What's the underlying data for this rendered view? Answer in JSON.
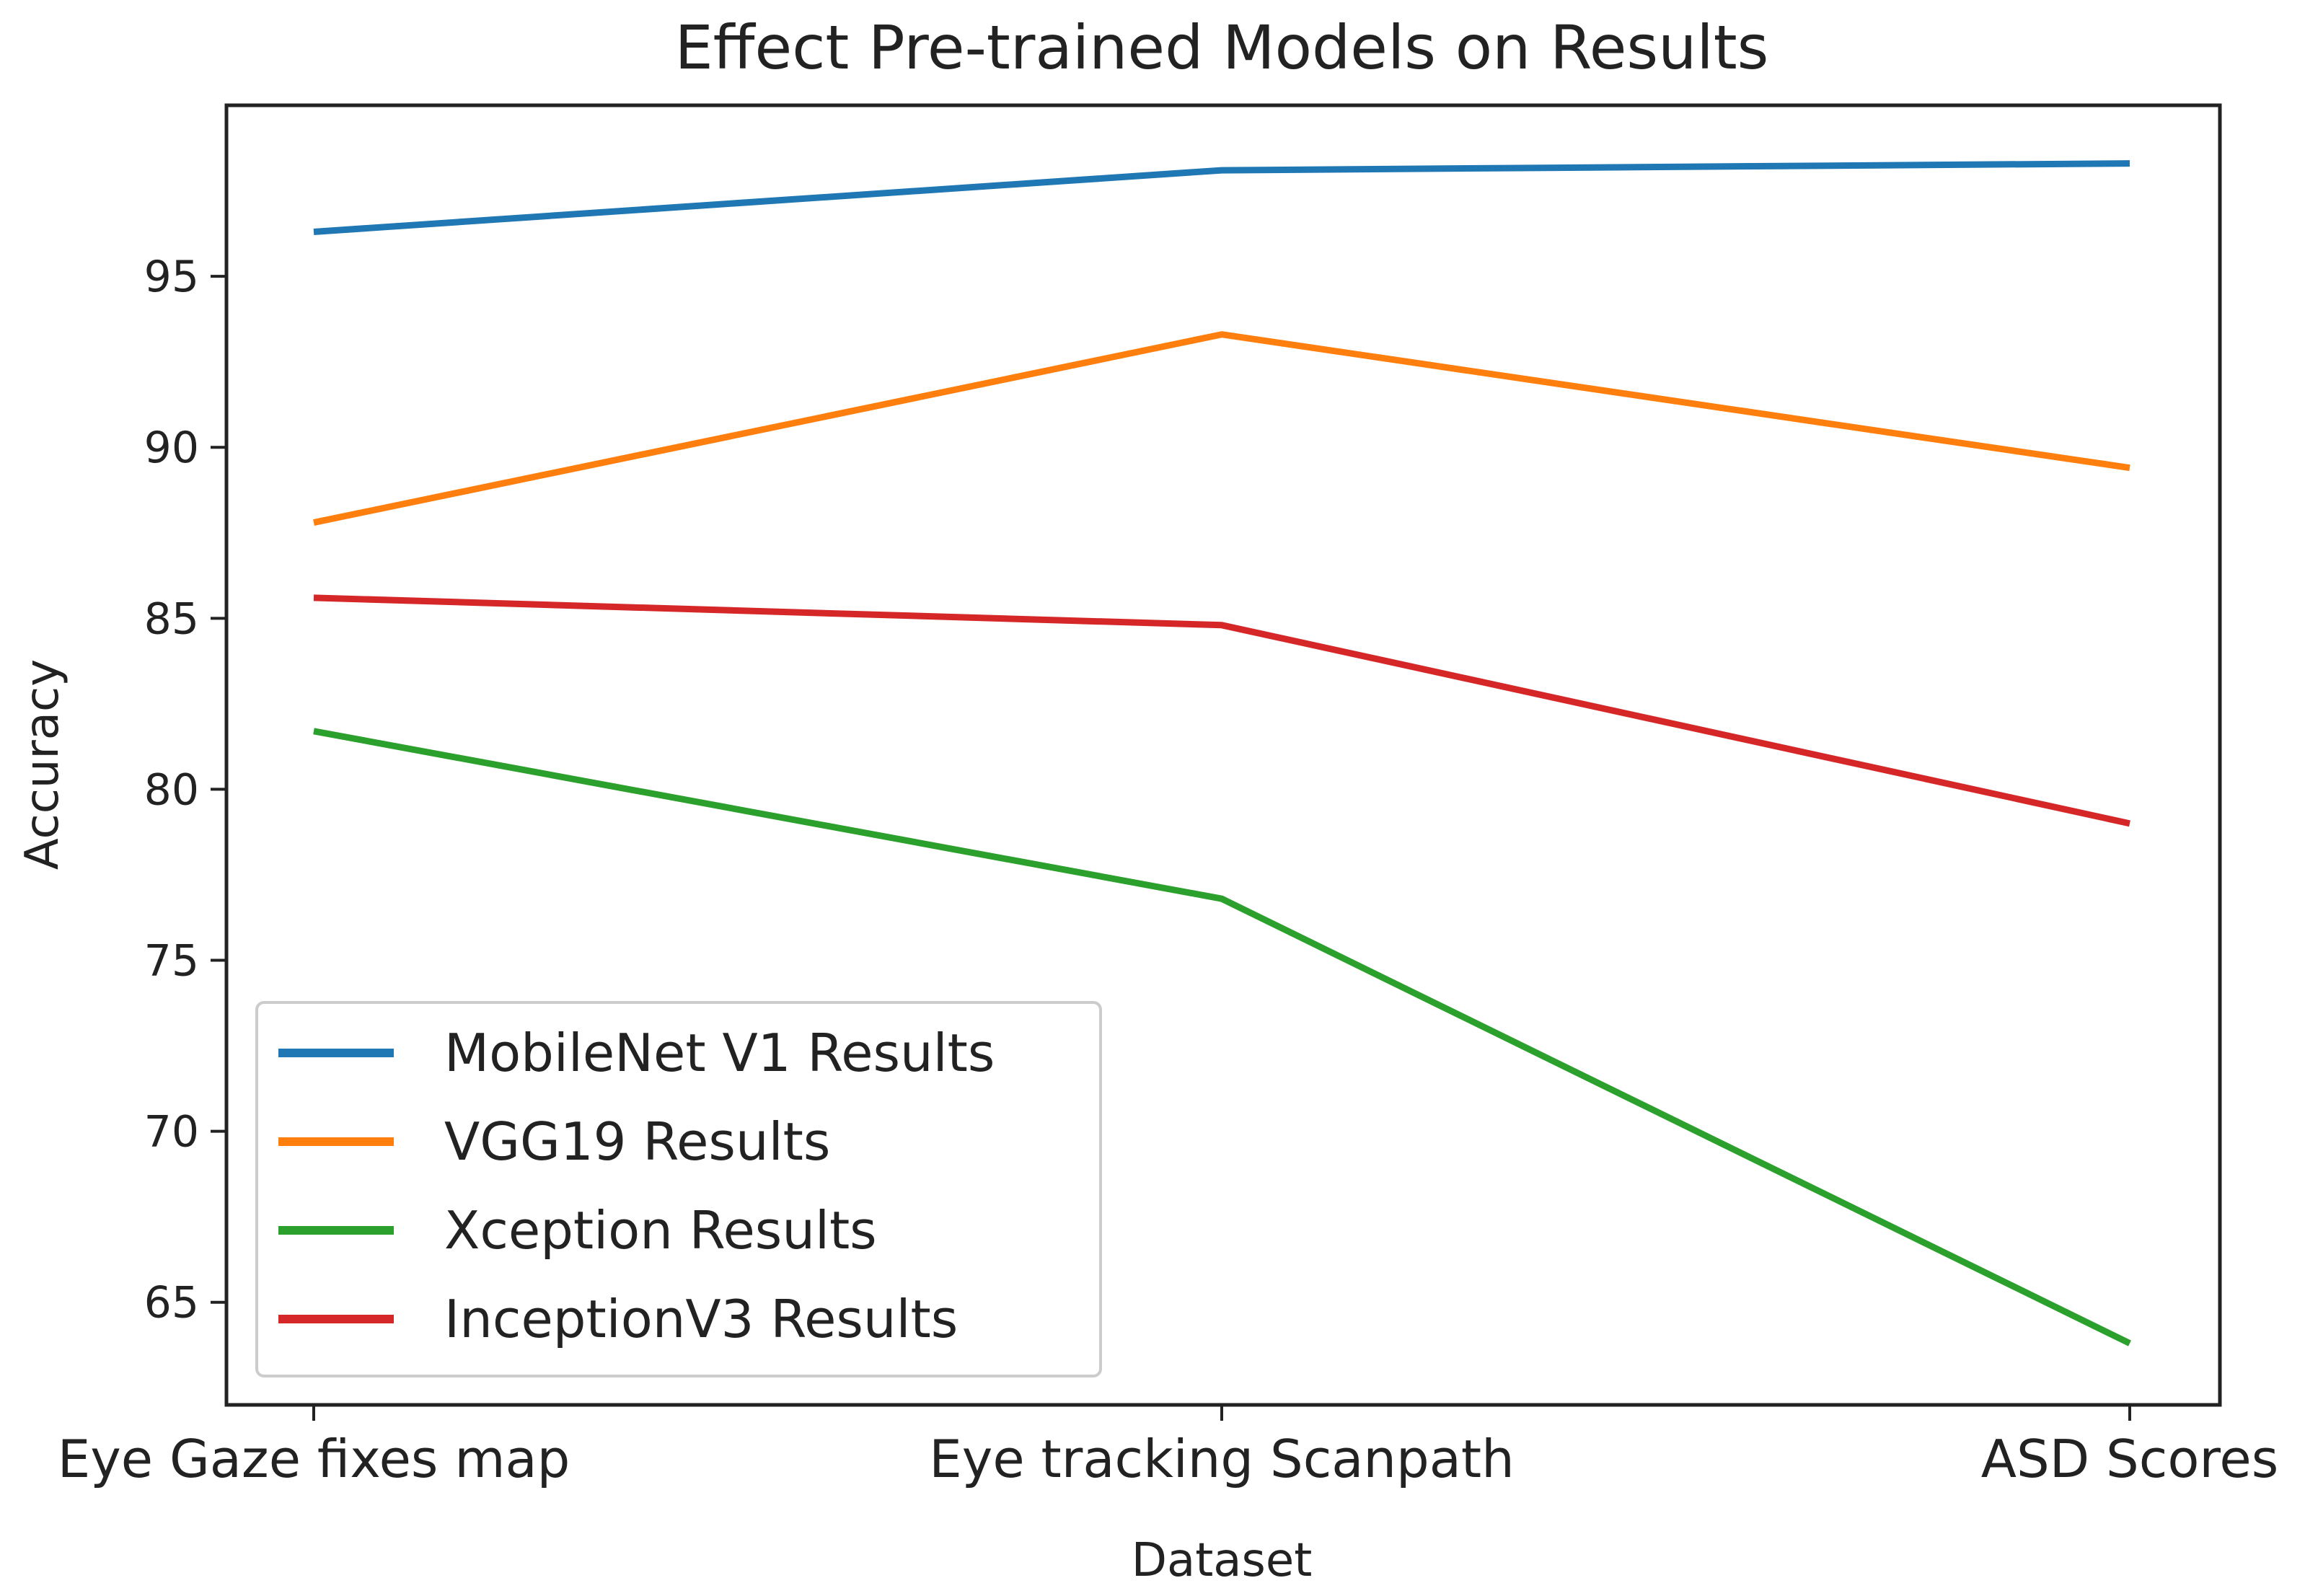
{
  "chart_data": {
    "type": "line",
    "title": "Effect Pre-trained Models on Results",
    "xlabel": "Dataset",
    "ylabel": "Accuracy",
    "categories": [
      "Eye Gaze fixes map",
      "Eye tracking Scanpath",
      "ASD Scores"
    ],
    "yticks": [
      65,
      70,
      75,
      80,
      85,
      90,
      95
    ],
    "ylim": [
      62.0,
      100.0
    ],
    "grid": false,
    "legend_position": "lower-left",
    "series": [
      {
        "name": "MobileNet V1 Results",
        "color": "#1f77b4",
        "values": [
          96.3,
          98.1,
          98.3
        ]
      },
      {
        "name": "VGG19 Results",
        "color": "#ff7f0e",
        "values": [
          87.8,
          93.3,
          89.4
        ]
      },
      {
        "name": "Xception Results",
        "color": "#2ca02c",
        "values": [
          81.7,
          76.8,
          63.8
        ]
      },
      {
        "name": "InceptionV3 Results",
        "color": "#d62728",
        "values": [
          85.6,
          84.8,
          79.0
        ]
      }
    ]
  }
}
